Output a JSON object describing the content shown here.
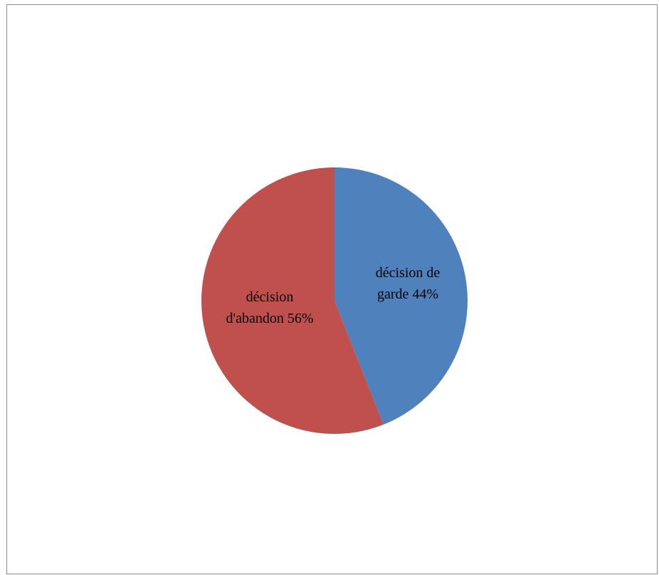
{
  "chart_data": {
    "type": "pie",
    "slices": [
      {
        "label_line1": "décision de",
        "label_line2": "garde 44%",
        "value": 44,
        "color": "#4f81bd"
      },
      {
        "label_line1": "décision",
        "label_line2": "d'abandon 56%",
        "value": 56,
        "color": "#c0504d"
      }
    ],
    "start_angle_deg": 0,
    "direction": "clockwise",
    "legend": "none"
  }
}
